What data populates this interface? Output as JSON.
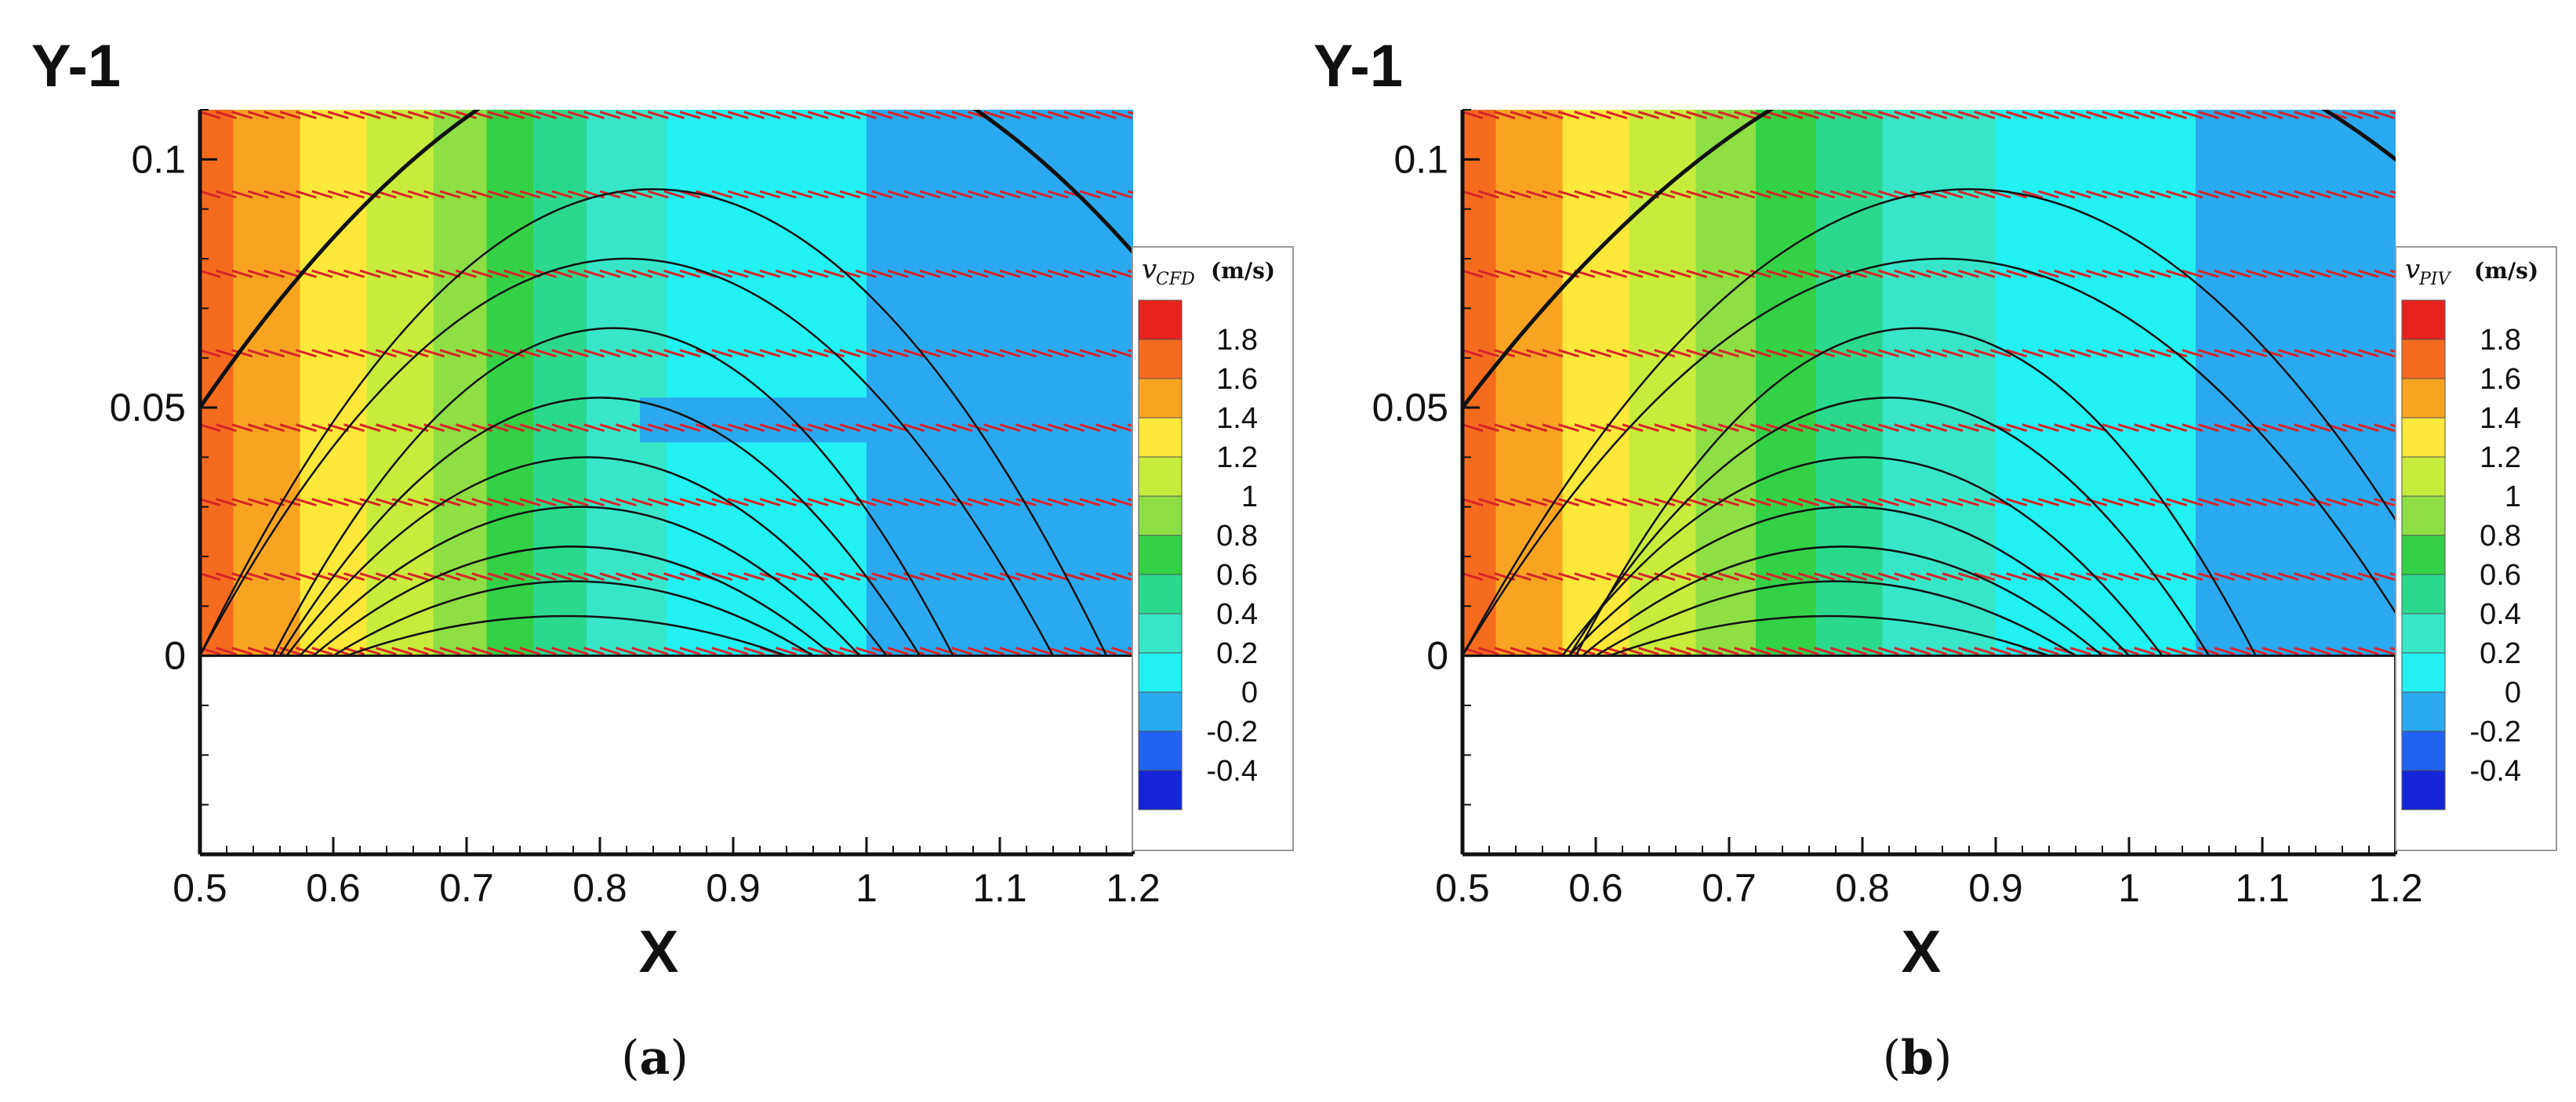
{
  "chart_data": [
    {
      "type": "heatmap",
      "panel_label": "a",
      "ylabel": "Y-1",
      "xlabel": "X",
      "xlim": [
        0.5,
        1.2
      ],
      "ylim": [
        -0.04,
        0.11
      ],
      "x_ticks": [
        "0.5",
        "0.6",
        "0.7",
        "0.8",
        "0.9",
        "1",
        "1.1",
        "1.2"
      ],
      "y_ticks": [
        "0",
        "0.05",
        "0.1"
      ],
      "colorbar": {
        "title": "v",
        "title_sub": "CFD",
        "unit": "(m/s)",
        "levels": [
          "1.8",
          "1.6",
          "1.4",
          "1.2",
          "1",
          "0.8",
          "0.6",
          "0.4",
          "0.2",
          "0",
          "-0.2",
          "-0.4"
        ]
      },
      "velocity_profile": {
        "x": [
          0.5,
          0.55,
          0.6,
          0.65,
          0.7,
          0.75,
          0.8,
          0.85,
          0.9,
          0.95,
          1.0,
          1.05,
          1.1,
          1.15,
          1.2
        ],
        "v": [
          1.5,
          1.3,
          1.1,
          0.9,
          0.7,
          0.4,
          0.15,
          0.0,
          -0.1,
          -0.15,
          -0.2,
          -0.2,
          -0.2,
          -0.2,
          -0.2
        ]
      },
      "low_band": {
        "y_range": [
          0.043,
          0.052
        ],
        "x_range": [
          0.83,
          1.2
        ],
        "v": -0.35
      },
      "series": [
        {
          "name": "streamlines",
          "x0": [
            0.5,
            0.5,
            0.5,
            0.5,
            0.5,
            0.5,
            0.5,
            0.5,
            0.5,
            0.5
          ],
          "apex_x": [
            0.86,
            0.84,
            0.82,
            0.81,
            0.8,
            0.79,
            0.785,
            0.78,
            0.78,
            0.775
          ],
          "apex_y": [
            0.108,
            0.094,
            0.08,
            0.066,
            0.052,
            0.04,
            0.03,
            0.022,
            0.015,
            0.008
          ]
        }
      ]
    },
    {
      "type": "heatmap",
      "panel_label": "b",
      "ylabel": "Y-1",
      "xlabel": "X",
      "xlim": [
        0.5,
        1.2
      ],
      "ylim": [
        -0.04,
        0.11
      ],
      "x_ticks": [
        "0.5",
        "0.6",
        "0.7",
        "0.8",
        "0.9",
        "1",
        "1.1",
        "1.2"
      ],
      "y_ticks": [
        "0",
        "0.05",
        "0.1"
      ],
      "colorbar": {
        "title": "v",
        "title_sub": "PIV",
        "unit": "(m/s)",
        "levels": [
          "1.8",
          "1.6",
          "1.4",
          "1.2",
          "1",
          "0.8",
          "0.6",
          "0.4",
          "0.2",
          "0",
          "-0.2",
          "-0.4"
        ]
      },
      "velocity_profile": {
        "x": [
          0.5,
          0.55,
          0.6,
          0.65,
          0.7,
          0.75,
          0.8,
          0.85,
          0.9,
          0.95,
          1.0,
          1.05,
          1.1,
          1.15,
          1.2
        ],
        "v": [
          1.5,
          1.3,
          1.1,
          0.9,
          0.7,
          0.45,
          0.25,
          0.1,
          0.0,
          -0.05,
          -0.15,
          -0.2,
          -0.2,
          -0.2,
          -0.2
        ]
      },
      "series": [
        {
          "name": "streamlines",
          "x0": [
            0.5,
            0.5,
            0.5,
            0.5,
            0.5,
            0.5,
            0.5,
            0.5,
            0.5,
            0.5
          ],
          "apex_x": [
            0.9,
            0.88,
            0.86,
            0.84,
            0.82,
            0.8,
            0.79,
            0.785,
            0.78,
            0.775
          ],
          "apex_y": [
            0.108,
            0.094,
            0.08,
            0.066,
            0.052,
            0.04,
            0.03,
            0.022,
            0.015,
            0.008
          ]
        }
      ]
    }
  ],
  "colors": {
    "levels": [
      "#e8221c",
      "#f46b1f",
      "#f7a521",
      "#fbe83a",
      "#c8ec3c",
      "#8ede46",
      "#34d045",
      "#2bd98e",
      "#37e6c7",
      "#22f0f2",
      "#2aa9ee",
      "#1f63f0",
      "#1425d8"
    ],
    "vector": "#d8242a",
    "streamline": "#111111"
  }
}
